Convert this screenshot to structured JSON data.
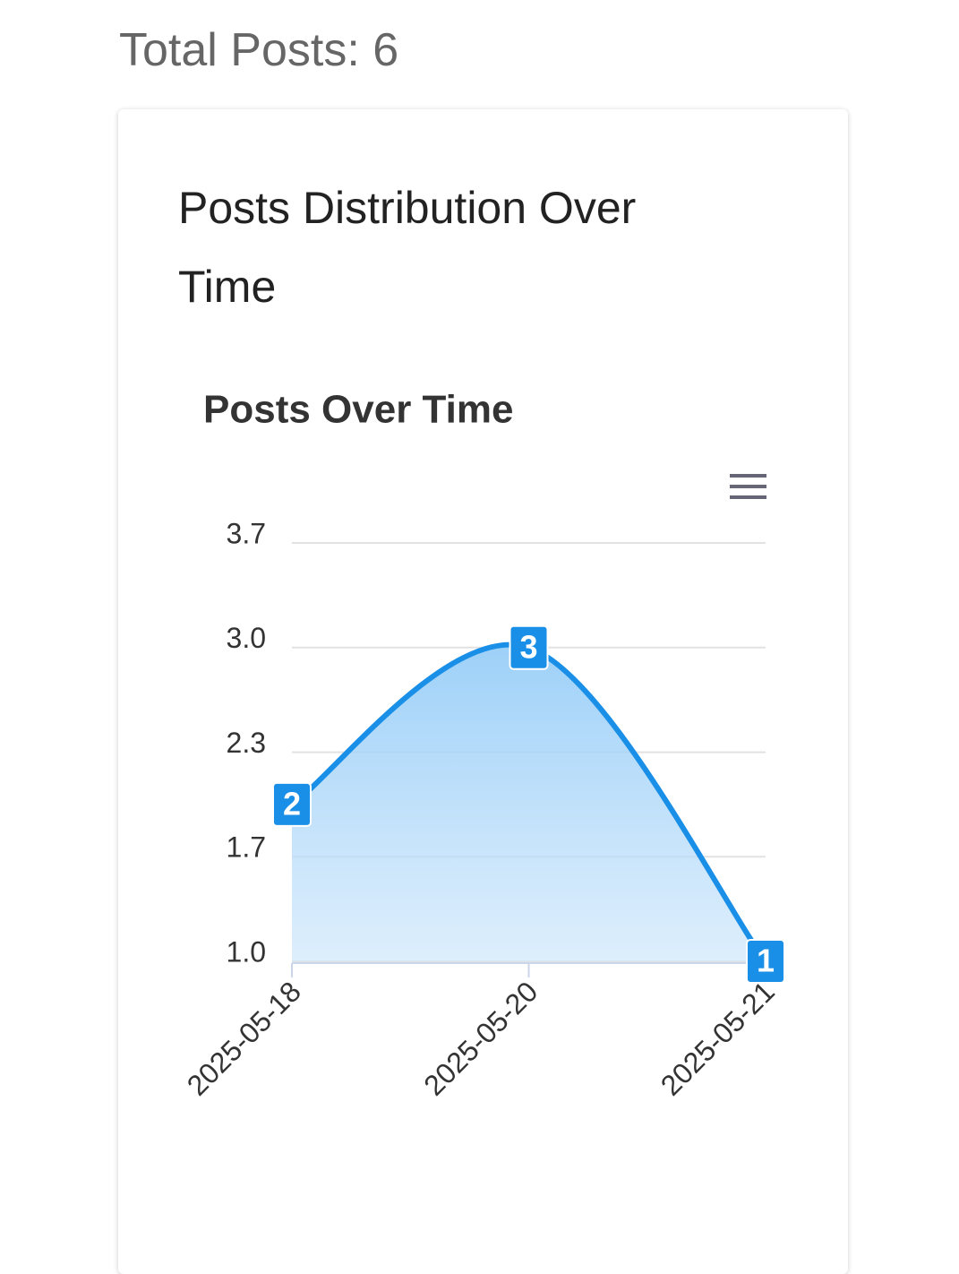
{
  "header": {
    "total_posts": "Total Posts: 6"
  },
  "card": {
    "title": "Posts Distribution Over Time"
  },
  "chart_data": {
    "type": "area",
    "title": "Posts Over Time",
    "categories": [
      "2025-05-18",
      "2025-05-20",
      "2025-05-21"
    ],
    "values": [
      2,
      3,
      1
    ],
    "color": "#1a8fe8",
    "ylim": [
      1,
      3.667
    ],
    "yticks": [
      {
        "value": 1,
        "label": "1.0"
      },
      {
        "value": 1.667,
        "label": "1.7"
      },
      {
        "value": 2.333,
        "label": "2.3"
      },
      {
        "value": 3,
        "label": "3.0"
      },
      {
        "value": 3.667,
        "label": "3.7"
      }
    ],
    "grid": true
  }
}
